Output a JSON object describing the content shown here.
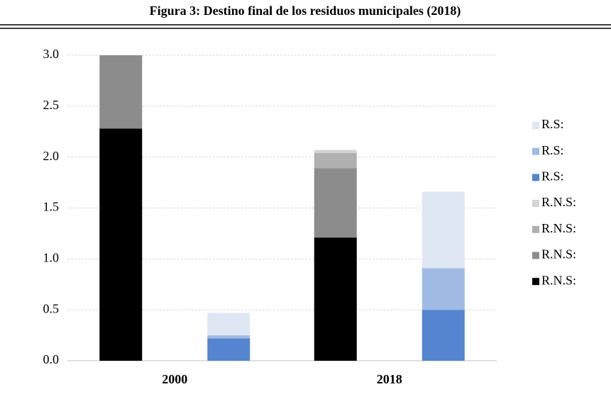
{
  "chart_data": {
    "type": "bar",
    "stacked": true,
    "title": "Figura 3: Destino final de los residuos municipales (2018)",
    "categories": [
      "2000",
      "2018"
    ],
    "series": [
      {
        "name": "R.N.S:",
        "stack": 0,
        "color": "#000000",
        "values": [
          2.28,
          1.21
        ]
      },
      {
        "name": "R.N.S:",
        "stack": 0,
        "color": "#8c8c8c",
        "values": [
          0.72,
          0.68
        ]
      },
      {
        "name": "R.N.S:",
        "stack": 0,
        "color": "#b0b0b0",
        "values": [
          0,
          0.15
        ]
      },
      {
        "name": "R.N.S:",
        "stack": 0,
        "color": "#d4d4d4",
        "values": [
          0,
          0.03
        ]
      },
      {
        "name": "R.S:",
        "stack": 1,
        "color": "#5585d0",
        "values": [
          0.22,
          0.5
        ]
      },
      {
        "name": "R.S:",
        "stack": 1,
        "color": "#a0bbe3",
        "values": [
          0.03,
          0.41
        ]
      },
      {
        "name": "R.S:",
        "stack": 1,
        "color": "#dfe6f4",
        "values": [
          0.22,
          0.75
        ]
      }
    ],
    "ylim": [
      0,
      3
    ],
    "yticks": [
      {
        "value": 0,
        "label": "0.0"
      },
      {
        "value": 0.5,
        "label": "0.5"
      },
      {
        "value": 1,
        "label": "1.0"
      },
      {
        "value": 1.5,
        "label": "1.5"
      },
      {
        "value": 2,
        "label": "2.0"
      },
      {
        "value": 2.5,
        "label": "2.5"
      },
      {
        "value": 3,
        "label": "3.0"
      }
    ],
    "grid": true,
    "legend": "right"
  }
}
